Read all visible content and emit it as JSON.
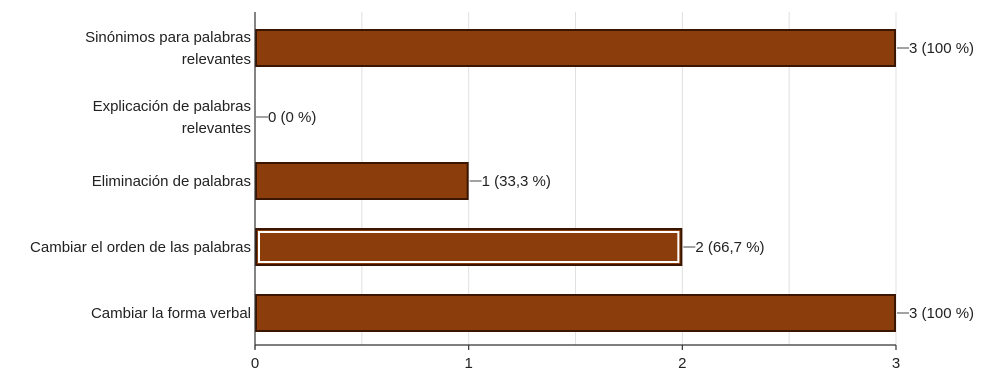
{
  "chart_data": {
    "type": "bar",
    "orientation": "horizontal",
    "title": "",
    "xlabel": "",
    "ylabel": "",
    "categories": [
      "Sinónimos para palabras relevantes",
      "Explicación de palabras relevantes",
      "Eliminación de palabras",
      "Cambiar el orden de las palabras",
      "Cambiar la forma verbal"
    ],
    "category_lines": [
      [
        "Sinónimos para palabras",
        "relevantes"
      ],
      [
        "Explicación de palabras",
        "relevantes"
      ],
      [
        "Eliminación de palabras"
      ],
      [
        "Cambiar el orden de las palabras"
      ],
      [
        "Cambiar la forma verbal"
      ]
    ],
    "values": [
      3,
      0,
      1,
      2,
      3
    ],
    "value_labels": [
      "3 (100 %)",
      "0 (0 %)",
      "1 (33,3 %)",
      "2 (66,7 %)",
      "3 (100 %)"
    ],
    "xlim": [
      0,
      3
    ],
    "xticks": [
      "0",
      "1",
      "2",
      "3"
    ],
    "highlighted_index": 3,
    "grid": true,
    "legend": "none",
    "colors": {
      "bar_fill": "#8B3E0B",
      "bar_border": "#3a1600",
      "grid": "#e0e0e0",
      "axis": "#333333"
    }
  }
}
